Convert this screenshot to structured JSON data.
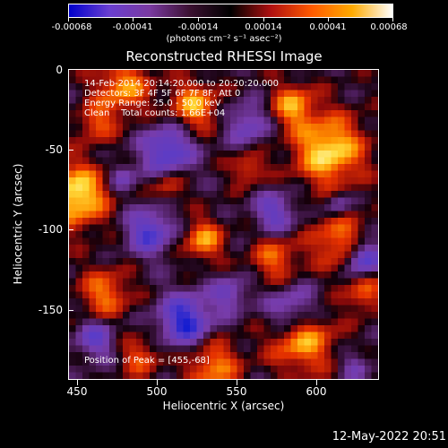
{
  "colorbar": {
    "labels": [
      "-0.00068",
      "-0.00041",
      "-0.00014",
      "0.00014",
      "0.00041",
      "0.00068"
    ],
    "units": "(photons cm⁻² s⁻¹ asec⁻²)",
    "gradient": [
      "#0000cc",
      "#6a3fd0",
      "#7a3aa0",
      "#3a1030",
      "#000000",
      "#b01010",
      "#ff5a00",
      "#ffaa00",
      "#ffffff"
    ]
  },
  "title": "Reconstructed RHESSI Image",
  "info": {
    "line1": "14-Feb-2014 20:14:20.000 to 20:20:20.000",
    "line2": "Detectors: 3F 4F 5F 6F 7F 8F, Att 0",
    "line3": "Energy Range: 25.0 - 50.0 keV",
    "line4": "Clean    Total counts: 1.66E+04",
    "peak": "Position of Peak = [455,-68]"
  },
  "axes": {
    "xlabel": "Heliocentric X (arcsec)",
    "ylabel": "Heliocentric Y (arcsec)",
    "xticks": [
      "450",
      "500",
      "550",
      "600"
    ],
    "yticks": [
      "0",
      "-50",
      "-100",
      "-150"
    ]
  },
  "timestamp": "12-May-2022 20:51"
}
